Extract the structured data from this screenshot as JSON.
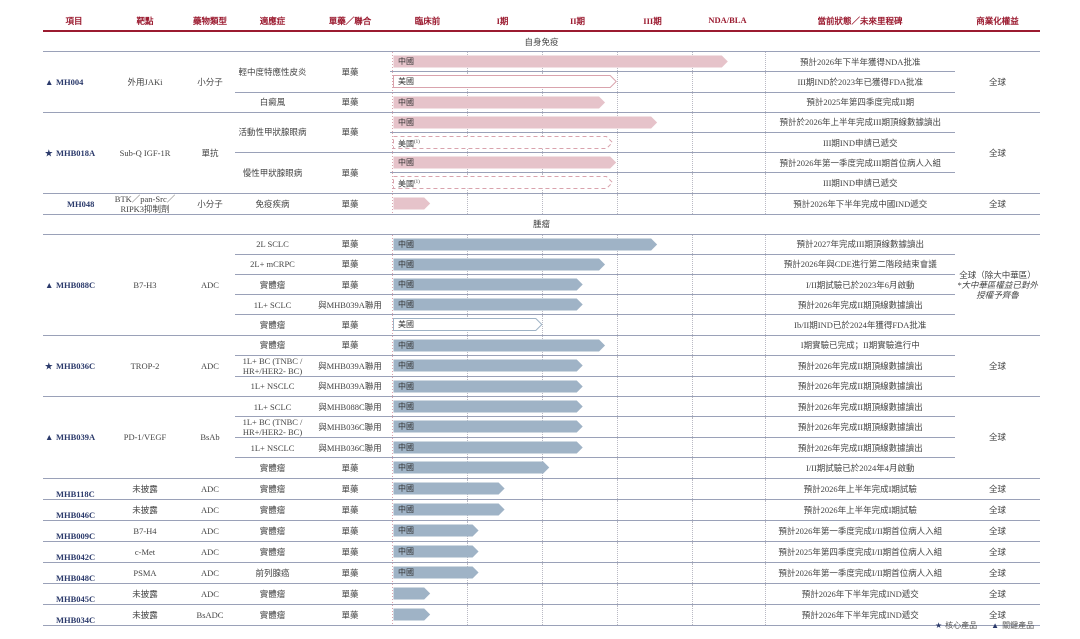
{
  "header": [
    "項目",
    "靶點",
    "藥物類型",
    "適應症",
    "單藥／聯合",
    "臨床前",
    "I期",
    "II期",
    "III期",
    "NDA/BLA",
    "當前狀態／未來里程碑",
    "商業化權益"
  ],
  "colors": {
    "header_red": "#9b1b30",
    "autoimmune_bar": "#e6c3ca",
    "oncology_bar": "#9fb3c6",
    "project_blue": "#2b3a6b",
    "section_band": "#dfe3ea"
  },
  "phase_scale_note_units": "phases: 0=臨床前 start, 1=I期, 2=II期, 3=III期, 4=NDA/BLA, 5=end",
  "sections": [
    {
      "name": "自身免疫",
      "bar": "autoimmune",
      "projects": [
        {
          "id": "MH004",
          "marker": "triangle",
          "target": "外用JAKi",
          "type": "小分子",
          "rights": "全球",
          "indications": [
            {
              "name": "輕中度特應性皮炎",
              "combo": "單藥",
              "rows": [
                {
                  "region": "中國",
                  "end": 4.5,
                  "style": "solid",
                  "status": "預計2026年下半年獲得NDA批准"
                },
                {
                  "region": "美國",
                  "end": 3.0,
                  "style": "outline",
                  "status": "III期IND於2023年已獲得FDA批准"
                }
              ]
            },
            {
              "name": "白癜風",
              "combo": "單藥",
              "rows": [
                {
                  "region": "中國",
                  "end": 2.85,
                  "style": "solid",
                  "status": "預計2025年第四季度完成II期"
                }
              ]
            }
          ]
        },
        {
          "id": "MHB018A",
          "marker": "star",
          "target": "Sub-Q IGF-1R",
          "type": "單抗",
          "rights": "全球",
          "indications": [
            {
              "name": "活動性甲狀腺眼病",
              "combo": "單藥",
              "rows": [
                {
                  "region": "中國",
                  "end": 3.55,
                  "style": "solid",
                  "status": "預計於2026年上半年完成III期頂線數據讀出"
                },
                {
                  "region": "美國",
                  "sup": "(1)",
                  "end": 2.95,
                  "style": "dashed",
                  "status": "III期IND申請已遞交"
                }
              ]
            },
            {
              "name": "慢性甲狀腺眼病",
              "combo": "單藥",
              "rows": [
                {
                  "region": "中國",
                  "end": 3.0,
                  "style": "solid",
                  "status": "預計2026年第一季度完成III期首位病人入組"
                },
                {
                  "region": "美國",
                  "sup": "(1)",
                  "end": 2.95,
                  "style": "dashed",
                  "status": "III期IND申請已遞交"
                }
              ]
            }
          ]
        },
        {
          "id": "MH048",
          "marker": "",
          "target": "BTK／pan-Src／RIPK3抑制劑",
          "type": "小分子",
          "rights": "全球",
          "indications": [
            {
              "name": "免疫疾病",
              "combo": "單藥",
              "rows": [
                {
                  "region": "",
                  "end": 0.5,
                  "style": "solid",
                  "status": "預計2026年下半年完成中國IND遞交"
                }
              ]
            }
          ]
        }
      ]
    },
    {
      "name": "腫瘤",
      "bar": "oncology",
      "projects": [
        {
          "id": "MHB088C",
          "marker": "triangle",
          "target": "B7-H3",
          "type": "ADC",
          "rights": "全球（除大中華區）",
          "rights_note": "*大中華區權益已對外授權予齊魯",
          "indications": [
            {
              "name": "2L SCLC",
              "combo": "單藥",
              "rows": [
                {
                  "region": "中國",
                  "end": 3.55,
                  "style": "solid",
                  "status": "預計2027年完成III期頂線數據讀出"
                }
              ]
            },
            {
              "name": "2L+ mCRPC",
              "combo": "單藥",
              "rows": [
                {
                  "region": "中國",
                  "end": 2.85,
                  "style": "solid",
                  "status": "預計2026年與CDE進行第二階段結束會議"
                }
              ]
            },
            {
              "name": "實體瘤",
              "combo": "單藥",
              "rows": [
                {
                  "region": "中國",
                  "end": 2.55,
                  "style": "solid",
                  "status": "I/II期試驗已於2023年6月啟動"
                }
              ]
            },
            {
              "name": "1L+ SCLC",
              "combo": "與MHB039A聯用",
              "rows": [
                {
                  "region": "中國",
                  "end": 2.55,
                  "style": "solid",
                  "status": "預計2026年完成II期頂線數據讀出"
                }
              ]
            },
            {
              "name": "實體瘤",
              "combo": "單藥",
              "rows": [
                {
                  "region": "美國",
                  "end": 2.0,
                  "style": "outline",
                  "status": "Ib/II期IND已於2024年獲得FDA批准"
                }
              ]
            }
          ]
        },
        {
          "id": "MHB036C",
          "marker": "star",
          "target": "TROP-2",
          "type": "ADC",
          "rights": "全球",
          "indications": [
            {
              "name": "實體瘤",
              "combo": "單藥",
              "rows": [
                {
                  "region": "中國",
                  "end": 2.85,
                  "style": "solid",
                  "status": "I期實驗已完成；II期實驗進行中"
                }
              ]
            },
            {
              "name": "1L+ BC (TNBC / HR+/HER2- BC)",
              "combo": "與MHB039A聯用",
              "rows": [
                {
                  "region": "中國",
                  "end": 2.55,
                  "style": "solid",
                  "status": "預計2026年完成II期頂線數據讀出"
                }
              ]
            },
            {
              "name": "1L+ NSCLC",
              "combo": "與MHB039A聯用",
              "rows": [
                {
                  "region": "中國",
                  "end": 2.55,
                  "style": "solid",
                  "status": "預計2026年完成II期頂線數據讀出"
                }
              ]
            }
          ]
        },
        {
          "id": "MHB039A",
          "marker": "triangle",
          "target": "PD-1/VEGF",
          "type": "BsAb",
          "rights": "全球",
          "indications": [
            {
              "name": "1L+ SCLC",
              "combo": "與MHB088C聯用",
              "rows": [
                {
                  "region": "中國",
                  "end": 2.55,
                  "style": "solid",
                  "status": "預計2026年完成II期頂線數據讀出"
                }
              ]
            },
            {
              "name": "1L+ BC (TNBC / HR+/HER2- BC)",
              "combo": "與MHB036C聯用",
              "rows": [
                {
                  "region": "中國",
                  "end": 2.55,
                  "style": "solid",
                  "status": "預計2026年完成II期頂線數據讀出"
                }
              ]
            },
            {
              "name": "1L+ NSCLC",
              "combo": "與MHB036C聯用",
              "rows": [
                {
                  "region": "中國",
                  "end": 2.55,
                  "style": "solid",
                  "status": "預計2026年完成II期頂線數據讀出"
                }
              ]
            },
            {
              "name": "實體瘤",
              "combo": "單藥",
              "rows": [
                {
                  "region": "中國",
                  "end": 2.1,
                  "style": "solid",
                  "status": "I/II期試驗已於2024年4月啟動"
                }
              ]
            }
          ]
        },
        {
          "id": "MHB118C",
          "marker": "",
          "target": "未披露",
          "type": "ADC",
          "rights": "全球",
          "indications": [
            {
              "name": "實體瘤",
              "combo": "單藥",
              "rows": [
                {
                  "region": "中國",
                  "end": 1.5,
                  "style": "solid",
                  "status": "預計2026年上半年完成I期試驗"
                }
              ]
            }
          ]
        },
        {
          "id": "MHB046C",
          "marker": "",
          "target": "未披露",
          "type": "ADC",
          "rights": "全球",
          "indications": [
            {
              "name": "實體瘤",
              "combo": "單藥",
              "rows": [
                {
                  "region": "中國",
                  "end": 1.5,
                  "style": "solid",
                  "status": "預計2026年上半年完成I期試驗"
                }
              ]
            }
          ]
        },
        {
          "id": "MHB009C",
          "marker": "",
          "target": "B7-H4",
          "type": "ADC",
          "rights": "全球",
          "indications": [
            {
              "name": "實體瘤",
              "combo": "單藥",
              "rows": [
                {
                  "region": "中國",
                  "end": 1.15,
                  "style": "solid",
                  "status": "預計2026年第一季度完成I/II期首位病人入組"
                }
              ]
            }
          ]
        },
        {
          "id": "MHB042C",
          "marker": "",
          "target": "c-Met",
          "type": "ADC",
          "rights": "全球",
          "indications": [
            {
              "name": "實體瘤",
              "combo": "單藥",
              "rows": [
                {
                  "region": "中國",
                  "end": 1.15,
                  "style": "solid",
                  "status": "預計2025年第四季度完成I/II期首位病人入組"
                }
              ]
            }
          ]
        },
        {
          "id": "MHB048C",
          "marker": "",
          "target": "PSMA",
          "type": "ADC",
          "rights": "全球",
          "indications": [
            {
              "name": "前列腺癌",
              "combo": "單藥",
              "rows": [
                {
                  "region": "中國",
                  "end": 1.15,
                  "style": "solid",
                  "status": "預計2026年第一季度完成I/II期首位病人入組"
                }
              ]
            }
          ]
        },
        {
          "id": "MHB045C",
          "marker": "",
          "target": "未披露",
          "type": "ADC",
          "rights": "全球",
          "indications": [
            {
              "name": "實體瘤",
              "combo": "單藥",
              "rows": [
                {
                  "region": "",
                  "end": 0.5,
                  "style": "solid",
                  "status": "預計2026年下半年完成IND遞交"
                }
              ]
            }
          ]
        },
        {
          "id": "MHB034C",
          "marker": "",
          "target": "未披露",
          "type": "BsADC",
          "rights": "全球",
          "indications": [
            {
              "name": "實體瘤",
              "combo": "單藥",
              "rows": [
                {
                  "region": "",
                  "end": 0.5,
                  "style": "solid",
                  "status": "預計2026年下半年完成IND遞交"
                }
              ]
            }
          ]
        }
      ]
    }
  ],
  "legend": [
    {
      "marker": "star",
      "label": "核心產品"
    },
    {
      "marker": "triangle",
      "label": "關鍵產品"
    }
  ]
}
